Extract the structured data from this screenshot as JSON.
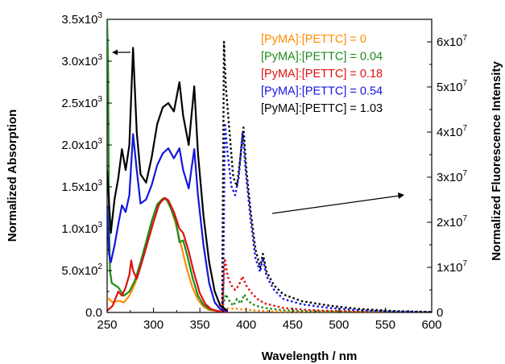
{
  "chart_data": {
    "type": "line",
    "xlabel": "Wavelength / nm",
    "ylabel_left": "Normalized Absorption",
    "ylabel_right": "Normalized Fluorescence Intensity",
    "xlim": [
      250,
      600
    ],
    "ylim_left": [
      0,
      3500
    ],
    "ylim_right": [
      0,
      65000000
    ],
    "x_ticks": [
      250,
      300,
      350,
      400,
      450,
      500,
      550,
      600
    ],
    "y_left_ticks": [
      {
        "value": 0,
        "mantissa": "0.0",
        "exp": ""
      },
      {
        "value": 500,
        "mantissa": "5.0x10",
        "exp": "2"
      },
      {
        "value": 1000,
        "mantissa": "1.0x10",
        "exp": "3"
      },
      {
        "value": 1500,
        "mantissa": "1.5x10",
        "exp": "3"
      },
      {
        "value": 2000,
        "mantissa": "2.0x10",
        "exp": "3"
      },
      {
        "value": 2500,
        "mantissa": "2.5x10",
        "exp": "3"
      },
      {
        "value": 3000,
        "mantissa": "3.0x10",
        "exp": "3"
      },
      {
        "value": 3500,
        "mantissa": "3.5x10",
        "exp": "3"
      }
    ],
    "y_right_ticks": [
      {
        "value": 0,
        "mantissa": "0",
        "exp": ""
      },
      {
        "value": 10000000,
        "mantissa": "1x10",
        "exp": "7"
      },
      {
        "value": 20000000,
        "mantissa": "2x10",
        "exp": "7"
      },
      {
        "value": 30000000,
        "mantissa": "3x10",
        "exp": "7"
      },
      {
        "value": 40000000,
        "mantissa": "4x10",
        "exp": "7"
      },
      {
        "value": 50000000,
        "mantissa": "5x10",
        "exp": "7"
      },
      {
        "value": 60000000,
        "mantissa": "6x10",
        "exp": "7"
      }
    ],
    "legend_position": "top-right",
    "series": [
      {
        "name": "[PyMA]:[PETTC] = 0",
        "color": "#FF8C00",
        "absorption": [
          [
            250,
            180
          ],
          [
            256,
            120
          ],
          [
            262,
            140
          ],
          [
            268,
            120
          ],
          [
            274,
            200
          ],
          [
            280,
            340
          ],
          [
            286,
            560
          ],
          [
            292,
            800
          ],
          [
            298,
            1060
          ],
          [
            304,
            1260
          ],
          [
            310,
            1350
          ],
          [
            314,
            1350
          ],
          [
            318,
            1270
          ],
          [
            324,
            1060
          ],
          [
            330,
            790
          ],
          [
            336,
            520
          ],
          [
            342,
            300
          ],
          [
            348,
            150
          ],
          [
            354,
            70
          ],
          [
            360,
            30
          ],
          [
            370,
            15
          ],
          [
            380,
            10
          ]
        ],
        "fluorescence": [
          [
            375,
            400000
          ],
          [
            380,
            900000
          ],
          [
            390,
            800000
          ],
          [
            400,
            600000
          ],
          [
            420,
            300000
          ],
          [
            450,
            150000
          ],
          [
            500,
            50000
          ],
          [
            550,
            20000
          ],
          [
            600,
            0
          ]
        ]
      },
      {
        "name": "[PyMA]:[PETTC] = 0.04",
        "color": "#1A8C1A",
        "absorption": [
          [
            250,
            3500
          ],
          [
            251,
            3000
          ],
          [
            252,
            1200
          ],
          [
            253,
            500
          ],
          [
            255,
            350
          ],
          [
            262,
            300
          ],
          [
            268,
            200
          ],
          [
            274,
            250
          ],
          [
            280,
            380
          ],
          [
            286,
            600
          ],
          [
            292,
            840
          ],
          [
            298,
            1090
          ],
          [
            304,
            1290
          ],
          [
            310,
            1360
          ],
          [
            314,
            1350
          ],
          [
            318,
            1260
          ],
          [
            324,
            1090
          ],
          [
            328,
            840
          ],
          [
            332,
            860
          ],
          [
            336,
            700
          ],
          [
            342,
            420
          ],
          [
            348,
            200
          ],
          [
            354,
            90
          ],
          [
            360,
            40
          ],
          [
            370,
            15
          ],
          [
            380,
            10
          ]
        ],
        "fluorescence": [
          [
            375,
            1500000
          ],
          [
            378,
            4000000
          ],
          [
            382,
            2500000
          ],
          [
            386,
            1500000
          ],
          [
            390,
            3000000
          ],
          [
            394,
            2000000
          ],
          [
            398,
            4000000
          ],
          [
            402,
            2500000
          ],
          [
            410,
            1500000
          ],
          [
            420,
            1000000
          ],
          [
            440,
            500000
          ],
          [
            470,
            250000
          ],
          [
            520,
            100000
          ],
          [
            600,
            20000
          ]
        ]
      },
      {
        "name": "[PyMA]:[PETTC] = 0.18",
        "color": "#E01010",
        "absorption": [
          [
            250,
            20
          ],
          [
            256,
            80
          ],
          [
            262,
            250
          ],
          [
            266,
            200
          ],
          [
            270,
            300
          ],
          [
            274,
            450
          ],
          [
            276,
            620
          ],
          [
            278,
            500
          ],
          [
            282,
            400
          ],
          [
            288,
            620
          ],
          [
            294,
            850
          ],
          [
            300,
            1080
          ],
          [
            306,
            1290
          ],
          [
            312,
            1370
          ],
          [
            316,
            1340
          ],
          [
            322,
            1200
          ],
          [
            328,
            1000
          ],
          [
            332,
            950
          ],
          [
            338,
            730
          ],
          [
            344,
            460
          ],
          [
            350,
            230
          ],
          [
            356,
            100
          ],
          [
            362,
            40
          ],
          [
            370,
            15
          ],
          [
            380,
            10
          ]
        ],
        "fluorescence": [
          [
            374,
            500000
          ],
          [
            377,
            12000000
          ],
          [
            380,
            8000000
          ],
          [
            384,
            6000000
          ],
          [
            388,
            5000000
          ],
          [
            392,
            6000000
          ],
          [
            396,
            8000000
          ],
          [
            400,
            6000000
          ],
          [
            405,
            4500000
          ],
          [
            412,
            3000000
          ],
          [
            420,
            2000000
          ],
          [
            440,
            1000000
          ],
          [
            470,
            500000
          ],
          [
            520,
            200000
          ],
          [
            600,
            50000
          ]
        ]
      },
      {
        "name": "[PyMA]:[PETTC] = 0.54",
        "color": "#1515E0",
        "absorption": [
          [
            250,
            1280
          ],
          [
            252,
            700
          ],
          [
            254,
            600
          ],
          [
            258,
            800
          ],
          [
            262,
            1050
          ],
          [
            266,
            1280
          ],
          [
            270,
            1200
          ],
          [
            274,
            1400
          ],
          [
            278,
            2130
          ],
          [
            282,
            1700
          ],
          [
            286,
            1300
          ],
          [
            292,
            1350
          ],
          [
            298,
            1520
          ],
          [
            304,
            1760
          ],
          [
            310,
            1900
          ],
          [
            316,
            1960
          ],
          [
            322,
            1840
          ],
          [
            328,
            1960
          ],
          [
            332,
            1700
          ],
          [
            338,
            1480
          ],
          [
            344,
            1950
          ],
          [
            348,
            1400
          ],
          [
            354,
            800
          ],
          [
            360,
            350
          ],
          [
            366,
            120
          ],
          [
            372,
            40
          ],
          [
            380,
            15
          ]
        ],
        "fluorescence": [
          [
            375,
            1000000
          ],
          [
            377,
            42000000
          ],
          [
            380,
            35000000
          ],
          [
            384,
            28000000
          ],
          [
            388,
            26000000
          ],
          [
            392,
            30000000
          ],
          [
            396,
            40000000
          ],
          [
            400,
            30000000
          ],
          [
            405,
            20000000
          ],
          [
            410,
            12000000
          ],
          [
            415,
            9000000
          ],
          [
            418,
            12000000
          ],
          [
            422,
            8000000
          ],
          [
            430,
            5000000
          ],
          [
            440,
            3000000
          ],
          [
            460,
            1800000
          ],
          [
            490,
            1000000
          ],
          [
            520,
            500000
          ],
          [
            560,
            200000
          ],
          [
            600,
            50000
          ]
        ]
      },
      {
        "name": "[PyMA]:[PETTC] = 1.03",
        "color": "#000000",
        "absorption": [
          [
            250,
            1700
          ],
          [
            254,
            950
          ],
          [
            258,
            1350
          ],
          [
            262,
            1600
          ],
          [
            266,
            1950
          ],
          [
            270,
            1700
          ],
          [
            274,
            2000
          ],
          [
            278,
            3160
          ],
          [
            282,
            2150
          ],
          [
            286,
            1650
          ],
          [
            292,
            1550
          ],
          [
            298,
            1850
          ],
          [
            304,
            2250
          ],
          [
            310,
            2450
          ],
          [
            316,
            2500
          ],
          [
            322,
            2400
          ],
          [
            328,
            2750
          ],
          [
            332,
            2350
          ],
          [
            338,
            2000
          ],
          [
            344,
            2700
          ],
          [
            348,
            1900
          ],
          [
            354,
            1150
          ],
          [
            360,
            600
          ],
          [
            366,
            250
          ],
          [
            372,
            80
          ],
          [
            380,
            20
          ]
        ],
        "fluorescence": [
          [
            374,
            1000000
          ],
          [
            376,
            60000000
          ],
          [
            378,
            50000000
          ],
          [
            382,
            40000000
          ],
          [
            386,
            30000000
          ],
          [
            390,
            28000000
          ],
          [
            394,
            35000000
          ],
          [
            397,
            41000000
          ],
          [
            400,
            32000000
          ],
          [
            405,
            22000000
          ],
          [
            410,
            14000000
          ],
          [
            415,
            10000000
          ],
          [
            418,
            13000000
          ],
          [
            422,
            9000000
          ],
          [
            430,
            6000000
          ],
          [
            440,
            4000000
          ],
          [
            460,
            2500000
          ],
          [
            490,
            1500000
          ],
          [
            520,
            800000
          ],
          [
            560,
            300000
          ],
          [
            600,
            100000
          ]
        ]
      }
    ],
    "annotations": [
      {
        "type": "arrow",
        "direction": "left",
        "points_to": "left-axis"
      },
      {
        "type": "arrow",
        "direction": "right",
        "points_to": "right-axis"
      }
    ]
  }
}
